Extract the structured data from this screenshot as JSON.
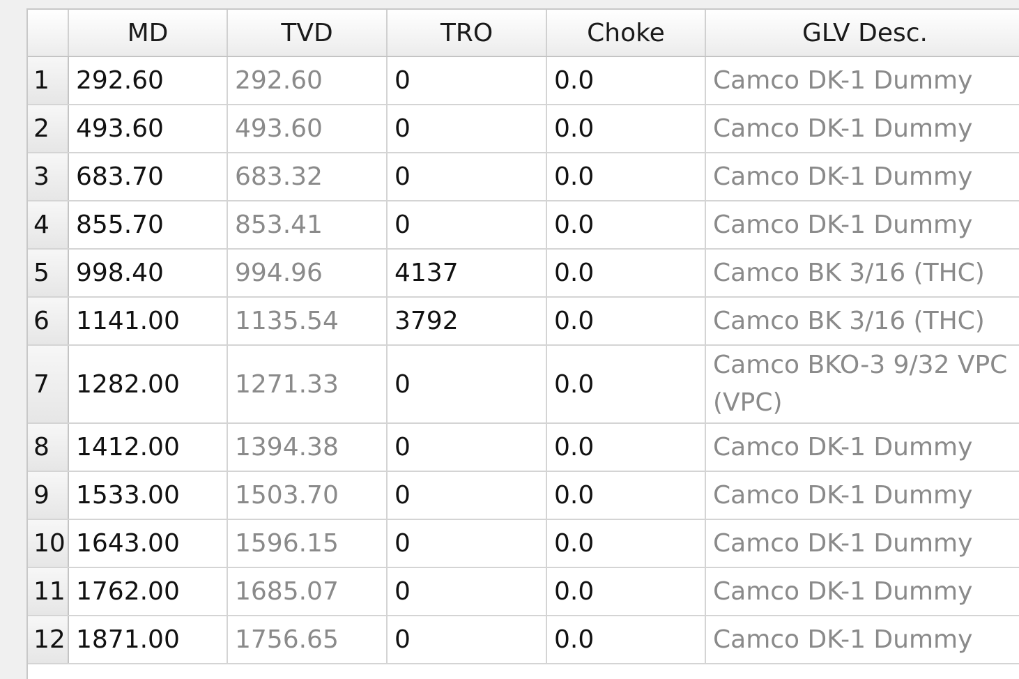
{
  "columns": [
    "",
    "MD",
    "TVD",
    "TRO",
    "Choke",
    "GLV Desc."
  ],
  "rows": [
    {
      "num": "1",
      "md": "292.60",
      "tvd": "292.60",
      "tro": "0",
      "choke": "0.0",
      "glv": "Camco DK-1 Dummy"
    },
    {
      "num": "2",
      "md": "493.60",
      "tvd": "493.60",
      "tro": "0",
      "choke": "0.0",
      "glv": "Camco DK-1 Dummy"
    },
    {
      "num": "3",
      "md": "683.70",
      "tvd": "683.32",
      "tro": "0",
      "choke": "0.0",
      "glv": "Camco DK-1 Dummy"
    },
    {
      "num": "4",
      "md": "855.70",
      "tvd": "853.41",
      "tro": "0",
      "choke": "0.0",
      "glv": "Camco DK-1 Dummy"
    },
    {
      "num": "5",
      "md": "998.40",
      "tvd": "994.96",
      "tro": "4137",
      "choke": "0.0",
      "glv": "Camco BK 3/16 (THC)"
    },
    {
      "num": "6",
      "md": "1141.00",
      "tvd": "1135.54",
      "tro": "3792",
      "choke": "0.0",
      "glv": "Camco BK 3/16 (THC)"
    },
    {
      "num": "7",
      "md": "1282.00",
      "tvd": "1271.33",
      "tro": "0",
      "choke": "0.0",
      "glv": "Camco BKO-3 9/32 VPC (VPC)"
    },
    {
      "num": "8",
      "md": "1412.00",
      "tvd": "1394.38",
      "tro": "0",
      "choke": "0.0",
      "glv": "Camco DK-1 Dummy"
    },
    {
      "num": "9",
      "md": "1533.00",
      "tvd": "1503.70",
      "tro": "0",
      "choke": "0.0",
      "glv": "Camco DK-1 Dummy"
    },
    {
      "num": "10",
      "md": "1643.00",
      "tvd": "1596.15",
      "tro": "0",
      "choke": "0.0",
      "glv": "Camco DK-1 Dummy"
    },
    {
      "num": "11",
      "md": "1762.00",
      "tvd": "1685.07",
      "tro": "0",
      "choke": "0.0",
      "glv": "Camco DK-1 Dummy"
    },
    {
      "num": "12",
      "md": "1871.00",
      "tvd": "1756.65",
      "tro": "0",
      "choke": "0.0",
      "glv": "Camco DK-1 Dummy"
    }
  ]
}
